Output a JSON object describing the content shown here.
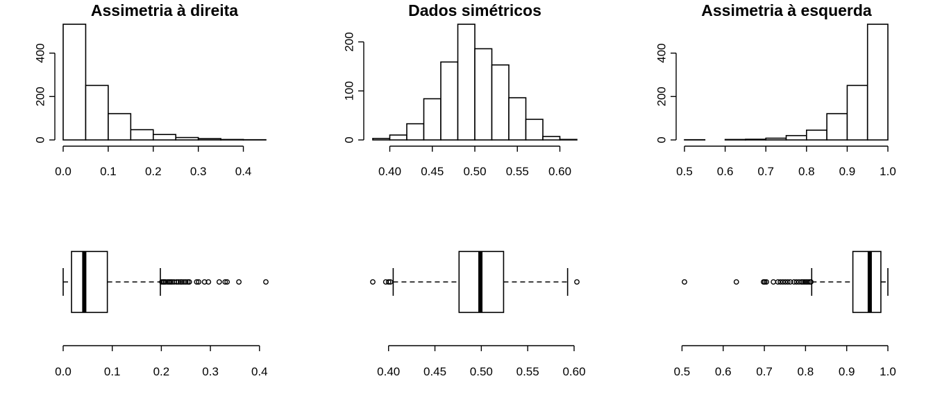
{
  "chart_data": [
    {
      "type": "histogram",
      "title": "Assimetria à direita",
      "bins": [
        {
          "x0": 0.0,
          "x1": 0.05,
          "count": 533
        },
        {
          "x0": 0.05,
          "x1": 0.1,
          "count": 251
        },
        {
          "x0": 0.1,
          "x1": 0.15,
          "count": 121
        },
        {
          "x0": 0.15,
          "x1": 0.2,
          "count": 47
        },
        {
          "x0": 0.2,
          "x1": 0.25,
          "count": 25
        },
        {
          "x0": 0.25,
          "x1": 0.3,
          "count": 11
        },
        {
          "x0": 0.3,
          "x1": 0.35,
          "count": 6
        },
        {
          "x0": 0.35,
          "x1": 0.4,
          "count": 2
        },
        {
          "x0": 0.4,
          "x1": 0.45,
          "count": 1
        }
      ],
      "x_ticks": [
        "0.0",
        "0.1",
        "0.2",
        "0.3",
        "0.4"
      ],
      "y_ticks": [
        "0",
        "200",
        "400"
      ],
      "xlim": [
        0.0,
        0.45
      ],
      "ylim": [
        0,
        533
      ]
    },
    {
      "type": "histogram",
      "title": "Dados simétricos",
      "bins": [
        {
          "x0": 0.38,
          "x1": 0.4,
          "count": 3
        },
        {
          "x0": 0.4,
          "x1": 0.42,
          "count": 10
        },
        {
          "x0": 0.42,
          "x1": 0.44,
          "count": 33
        },
        {
          "x0": 0.44,
          "x1": 0.46,
          "count": 84
        },
        {
          "x0": 0.46,
          "x1": 0.48,
          "count": 159
        },
        {
          "x0": 0.48,
          "x1": 0.5,
          "count": 236
        },
        {
          "x0": 0.5,
          "x1": 0.52,
          "count": 186
        },
        {
          "x0": 0.52,
          "x1": 0.54,
          "count": 153
        },
        {
          "x0": 0.54,
          "x1": 0.56,
          "count": 86
        },
        {
          "x0": 0.56,
          "x1": 0.58,
          "count": 42
        },
        {
          "x0": 0.58,
          "x1": 0.6,
          "count": 7
        },
        {
          "x0": 0.6,
          "x1": 0.62,
          "count": 1
        }
      ],
      "x_ticks": [
        "0.40",
        "0.45",
        "0.50",
        "0.55",
        "0.60"
      ],
      "y_ticks": [
        "0",
        "100",
        "200"
      ],
      "xlim": [
        0.38,
        0.62
      ],
      "ylim": [
        0,
        236
      ]
    },
    {
      "type": "histogram",
      "title": "Assimetria à esquerda",
      "bins": [
        {
          "x0": 0.5,
          "x1": 0.55,
          "count": 1
        },
        {
          "x0": 0.55,
          "x1": 0.6,
          "count": 0
        },
        {
          "x0": 0.6,
          "x1": 0.65,
          "count": 2
        },
        {
          "x0": 0.65,
          "x1": 0.7,
          "count": 3
        },
        {
          "x0": 0.7,
          "x1": 0.75,
          "count": 8
        },
        {
          "x0": 0.75,
          "x1": 0.8,
          "count": 20
        },
        {
          "x0": 0.8,
          "x1": 0.85,
          "count": 45
        },
        {
          "x0": 0.85,
          "x1": 0.9,
          "count": 121
        },
        {
          "x0": 0.9,
          "x1": 0.95,
          "count": 251
        },
        {
          "x0": 0.95,
          "x1": 1.0,
          "count": 533
        }
      ],
      "x_ticks": [
        "0.5",
        "0.6",
        "0.7",
        "0.8",
        "0.9",
        "1.0"
      ],
      "y_ticks": [
        "0",
        "200",
        "400"
      ],
      "xlim": [
        0.5,
        1.0
      ],
      "ylim": [
        0,
        533
      ]
    },
    {
      "type": "boxplot",
      "orientation": "horizontal",
      "whisker_low": 0.0,
      "q1": 0.017,
      "median": 0.043,
      "q3": 0.09,
      "whisker_high": 0.198,
      "outliers": [
        0.201,
        0.204,
        0.206,
        0.209,
        0.213,
        0.216,
        0.219,
        0.222,
        0.226,
        0.231,
        0.235,
        0.239,
        0.242,
        0.246,
        0.25,
        0.254,
        0.257,
        0.272,
        0.276,
        0.288,
        0.296,
        0.318,
        0.33,
        0.334,
        0.358,
        0.413
      ],
      "x_ticks": [
        "0.0",
        "0.1",
        "0.2",
        "0.3",
        "0.4"
      ],
      "xlim": [
        0.0,
        0.413
      ]
    },
    {
      "type": "boxplot",
      "orientation": "horizontal",
      "whisker_low": 0.405,
      "q1": 0.476,
      "median": 0.499,
      "q3": 0.524,
      "whisker_high": 0.593,
      "outliers": [
        0.383,
        0.397,
        0.4,
        0.402,
        0.603
      ],
      "x_ticks": [
        "0.40",
        "0.45",
        "0.50",
        "0.55",
        "0.60"
      ],
      "xlim": [
        0.383,
        0.603
      ]
    },
    {
      "type": "boxplot",
      "orientation": "horizontal",
      "whisker_low": 0.815,
      "q1": 0.915,
      "median": 0.956,
      "q3": 0.983,
      "whisker_high": 1.0,
      "outliers": [
        0.506,
        0.632,
        0.698,
        0.701,
        0.705,
        0.722,
        0.733,
        0.739,
        0.745,
        0.751,
        0.757,
        0.763,
        0.772,
        0.778,
        0.784,
        0.79,
        0.794,
        0.798,
        0.802,
        0.806,
        0.81,
        0.813
      ],
      "x_ticks": [
        "0.5",
        "0.6",
        "0.7",
        "0.8",
        "0.9",
        "1.0"
      ],
      "xlim": [
        0.506,
        1.0
      ]
    }
  ]
}
